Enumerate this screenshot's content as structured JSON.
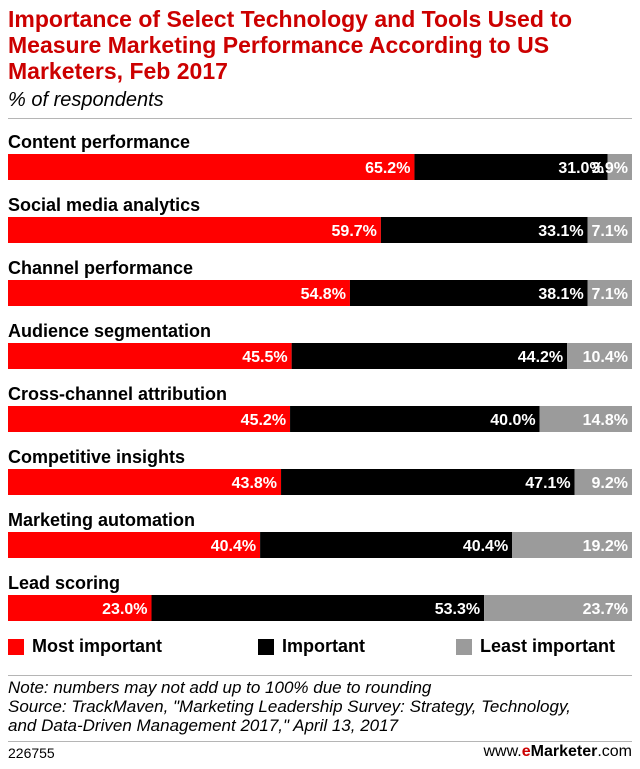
{
  "header": {
    "title": "Importance of Select Technology and Tools Used to Measure Marketing Performance According to US Marketers, Feb 2017",
    "subtitle": "% of respondents"
  },
  "colors": {
    "most": "#ff0000",
    "important": "#000000",
    "least": "#9b9b9b"
  },
  "chart_data": {
    "type": "bar",
    "orientation": "horizontal",
    "stacked": true,
    "title": "Importance of Select Technology and Tools Used to Measure Marketing Performance According to US Marketers, Feb 2017",
    "subtitle": "% of respondents",
    "categories": [
      "Content performance",
      "Social media analytics",
      "Channel performance",
      "Audience segmentation",
      "Cross-channel attribution",
      "Competitive insights",
      "Marketing automation",
      "Lead scoring"
    ],
    "series": [
      {
        "name": "Most important",
        "values": [
          65.2,
          59.7,
          54.8,
          45.5,
          45.2,
          43.8,
          40.4,
          23.0
        ]
      },
      {
        "name": "Important",
        "values": [
          31.0,
          33.1,
          38.1,
          44.2,
          40.0,
          47.1,
          40.4,
          53.3
        ]
      },
      {
        "name": "Least important",
        "values": [
          3.9,
          7.1,
          7.1,
          10.4,
          14.8,
          9.2,
          19.2,
          23.7
        ]
      }
    ],
    "value_labels": [
      [
        "65.2%",
        "31.0%",
        "3.9%"
      ],
      [
        "59.7%",
        "33.1%",
        "7.1%"
      ],
      [
        "54.8%",
        "38.1%",
        "7.1%"
      ],
      [
        "45.5%",
        "44.2%",
        "10.4%"
      ],
      [
        "45.2%",
        "40.0%",
        "14.8%"
      ],
      [
        "43.8%",
        "47.1%",
        "9.2%"
      ],
      [
        "40.4%",
        "40.4%",
        "19.2%"
      ],
      [
        "23.0%",
        "53.3%",
        "23.7%"
      ]
    ],
    "xlim": [
      0,
      100
    ],
    "grid": false,
    "legend_position": "bottom"
  },
  "legend": [
    {
      "label": "Most important",
      "color": "#ff0000"
    },
    {
      "label": "Important",
      "color": "#000000"
    },
    {
      "label": "Least important",
      "color": "#9b9b9b"
    }
  ],
  "notes": {
    "note": "Note: numbers may not add up to 100% due to rounding",
    "source_line1": "Source: TrackMaven, \"Marketing Leadership Survey: Strategy, Technology,",
    "source_line2": "and Data-Driven Management 2017,\" April 13, 2017"
  },
  "footer": {
    "id": "226755",
    "brand_prefix": "www.",
    "brand_e": "e",
    "brand_name": "Marketer",
    "brand_suffix": ".com"
  }
}
